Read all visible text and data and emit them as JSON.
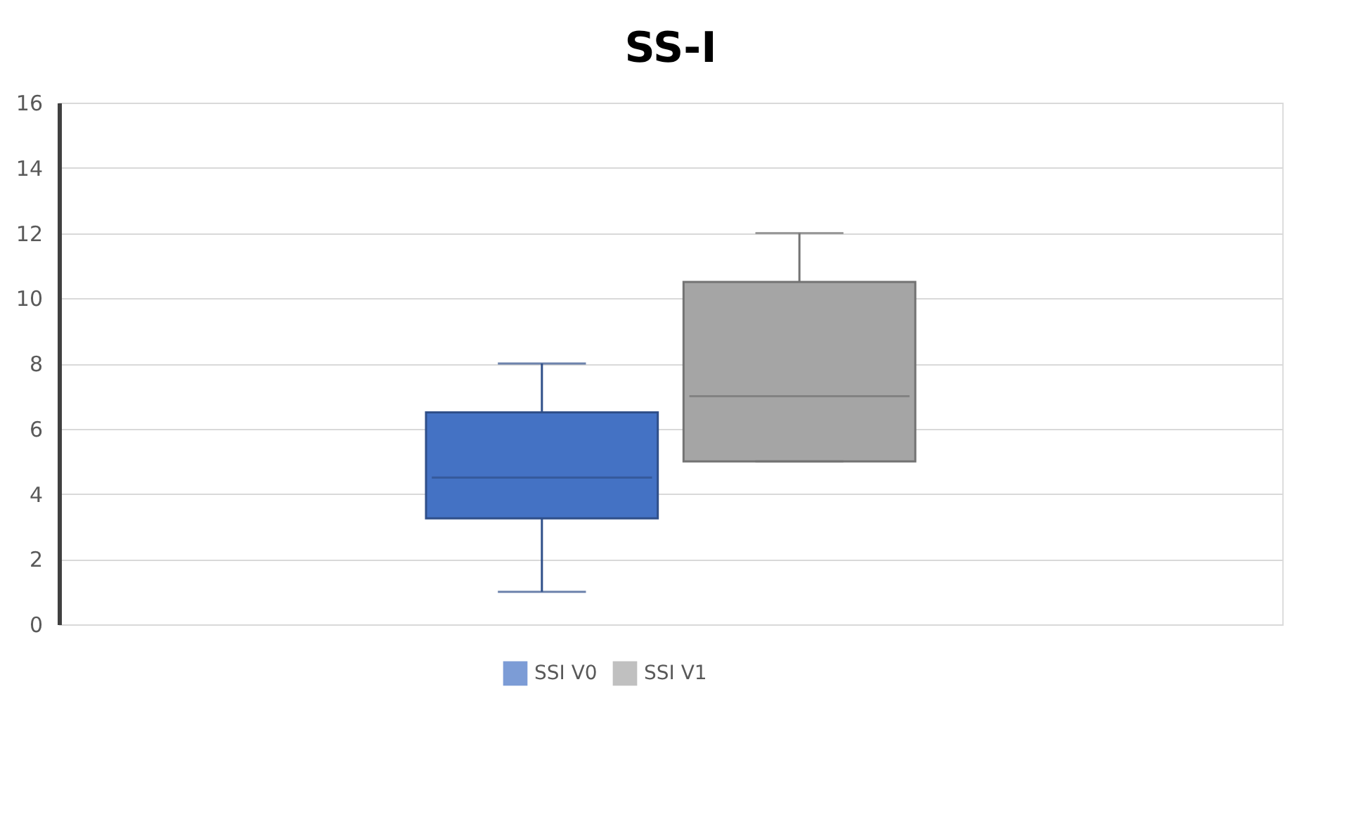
{
  "chart_data": {
    "type": "box",
    "title": "SS-I",
    "categories": [
      null
    ],
    "series": [
      {
        "name": "SSI V0",
        "color": "#4472c4",
        "boxes": [
          {
            "low": 1,
            "q1": 3.25,
            "median": 4.5,
            "q3": 6.5,
            "high": 8
          }
        ]
      },
      {
        "name": "SSI V1",
        "color": "#a5a5a5",
        "boxes": [
          {
            "low": 5,
            "q1": 5,
            "median": 7,
            "q3": 10.5,
            "high": 12
          }
        ]
      }
    ],
    "ylim": [
      0,
      16
    ],
    "yticks": [
      0,
      2,
      4,
      6,
      8,
      10,
      12,
      14,
      16
    ],
    "grid": "y",
    "legend": "bottom"
  }
}
